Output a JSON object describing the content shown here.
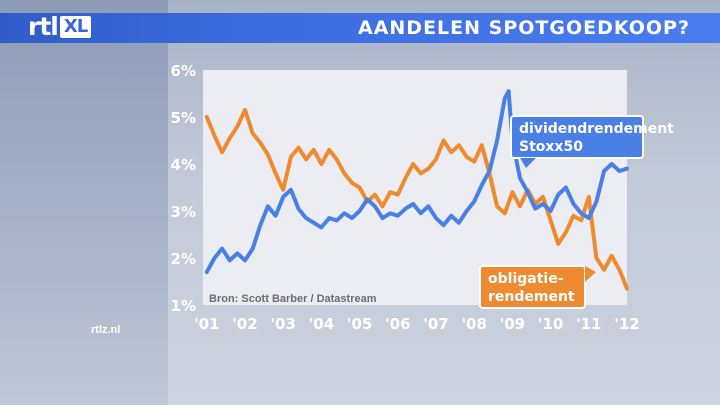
{
  "header": {
    "title": "AANDELEN SPOTGOEDKOOP?"
  },
  "logo": {
    "text": "rtl",
    "badge": "XL"
  },
  "site": {
    "url": "rtlz.nl"
  },
  "colors": {
    "blue_series": "#4a7fe6",
    "orange_series": "#ee8a30",
    "header": "#3c6ee0"
  },
  "chart_data": {
    "type": "line",
    "title": "",
    "xlabel": "",
    "ylabel": "",
    "ylim": [
      1,
      6
    ],
    "xlim": [
      2000.9,
      2012.0
    ],
    "y_ticks": [
      "1%",
      "2%",
      "3%",
      "4%",
      "5%",
      "6%"
    ],
    "x_ticks": [
      "'01",
      "'02",
      "'03",
      "'04",
      "'05",
      "'06",
      "'07",
      "'08",
      "'09",
      "'10",
      "'11",
      "'12"
    ],
    "source": "Bron: Scott Barber / Datastream",
    "grid": false,
    "series": [
      {
        "name": "dividendrendement Stoxx50",
        "color": "#4a7fe6",
        "points": [
          [
            2001.0,
            1.7
          ],
          [
            2001.2,
            2.0
          ],
          [
            2001.4,
            2.2
          ],
          [
            2001.6,
            1.95
          ],
          [
            2001.8,
            2.1
          ],
          [
            2002.0,
            1.95
          ],
          [
            2002.2,
            2.2
          ],
          [
            2002.4,
            2.7
          ],
          [
            2002.6,
            3.1
          ],
          [
            2002.8,
            2.9
          ],
          [
            2003.0,
            3.3
          ],
          [
            2003.2,
            3.45
          ],
          [
            2003.4,
            3.05
          ],
          [
            2003.6,
            2.85
          ],
          [
            2003.8,
            2.75
          ],
          [
            2004.0,
            2.65
          ],
          [
            2004.2,
            2.85
          ],
          [
            2004.4,
            2.8
          ],
          [
            2004.6,
            2.95
          ],
          [
            2004.8,
            2.85
          ],
          [
            2005.0,
            3.0
          ],
          [
            2005.2,
            3.25
          ],
          [
            2005.4,
            3.1
          ],
          [
            2005.6,
            2.85
          ],
          [
            2005.8,
            2.95
          ],
          [
            2006.0,
            2.9
          ],
          [
            2006.2,
            3.05
          ],
          [
            2006.4,
            3.15
          ],
          [
            2006.6,
            2.95
          ],
          [
            2006.8,
            3.1
          ],
          [
            2007.0,
            2.85
          ],
          [
            2007.2,
            2.7
          ],
          [
            2007.4,
            2.9
          ],
          [
            2007.6,
            2.75
          ],
          [
            2007.8,
            3.0
          ],
          [
            2008.0,
            3.2
          ],
          [
            2008.2,
            3.55
          ],
          [
            2008.4,
            3.85
          ],
          [
            2008.6,
            4.5
          ],
          [
            2008.8,
            5.4
          ],
          [
            2008.9,
            5.55
          ],
          [
            2009.0,
            4.5
          ],
          [
            2009.2,
            3.7
          ],
          [
            2009.4,
            3.4
          ],
          [
            2009.6,
            3.05
          ],
          [
            2009.8,
            3.15
          ],
          [
            2010.0,
            3.0
          ],
          [
            2010.2,
            3.35
          ],
          [
            2010.4,
            3.5
          ],
          [
            2010.6,
            3.15
          ],
          [
            2010.8,
            2.95
          ],
          [
            2011.0,
            2.85
          ],
          [
            2011.2,
            3.2
          ],
          [
            2011.4,
            3.85
          ],
          [
            2011.6,
            4.0
          ],
          [
            2011.8,
            3.85
          ],
          [
            2012.0,
            3.9
          ]
        ]
      },
      {
        "name": "obligatie-rendement",
        "color": "#ee8a30",
        "points": [
          [
            2001.0,
            5.0
          ],
          [
            2001.2,
            4.6
          ],
          [
            2001.4,
            4.25
          ],
          [
            2001.6,
            4.55
          ],
          [
            2001.8,
            4.8
          ],
          [
            2002.0,
            5.15
          ],
          [
            2002.2,
            4.65
          ],
          [
            2002.4,
            4.45
          ],
          [
            2002.6,
            4.2
          ],
          [
            2002.8,
            3.8
          ],
          [
            2003.0,
            3.45
          ],
          [
            2003.2,
            4.15
          ],
          [
            2003.4,
            4.35
          ],
          [
            2003.6,
            4.1
          ],
          [
            2003.8,
            4.3
          ],
          [
            2004.0,
            4.0
          ],
          [
            2004.2,
            4.3
          ],
          [
            2004.4,
            4.1
          ],
          [
            2004.6,
            3.8
          ],
          [
            2004.8,
            3.6
          ],
          [
            2005.0,
            3.5
          ],
          [
            2005.2,
            3.2
          ],
          [
            2005.4,
            3.35
          ],
          [
            2005.6,
            3.1
          ],
          [
            2005.8,
            3.4
          ],
          [
            2006.0,
            3.35
          ],
          [
            2006.2,
            3.7
          ],
          [
            2006.4,
            4.0
          ],
          [
            2006.6,
            3.8
          ],
          [
            2006.8,
            3.9
          ],
          [
            2007.0,
            4.1
          ],
          [
            2007.2,
            4.5
          ],
          [
            2007.4,
            4.25
          ],
          [
            2007.6,
            4.4
          ],
          [
            2007.8,
            4.15
          ],
          [
            2008.0,
            4.05
          ],
          [
            2008.2,
            4.4
          ],
          [
            2008.4,
            3.8
          ],
          [
            2008.6,
            3.1
          ],
          [
            2008.8,
            2.95
          ],
          [
            2009.0,
            3.4
          ],
          [
            2009.2,
            3.1
          ],
          [
            2009.4,
            3.45
          ],
          [
            2009.6,
            3.15
          ],
          [
            2009.8,
            3.3
          ],
          [
            2010.0,
            2.8
          ],
          [
            2010.2,
            2.3
          ],
          [
            2010.4,
            2.55
          ],
          [
            2010.6,
            2.9
          ],
          [
            2010.8,
            2.8
          ],
          [
            2011.0,
            3.3
          ],
          [
            2011.2,
            2.0
          ],
          [
            2011.4,
            1.75
          ],
          [
            2011.6,
            2.05
          ],
          [
            2011.8,
            1.75
          ],
          [
            2012.0,
            1.35
          ]
        ]
      }
    ],
    "annotations": [
      {
        "series": "dividendrendement Stoxx50",
        "lines": [
          "dividendrendement",
          "Stoxx50"
        ]
      },
      {
        "series": "obligatie-rendement",
        "lines": [
          "obligatie-",
          "rendement"
        ]
      }
    ]
  }
}
